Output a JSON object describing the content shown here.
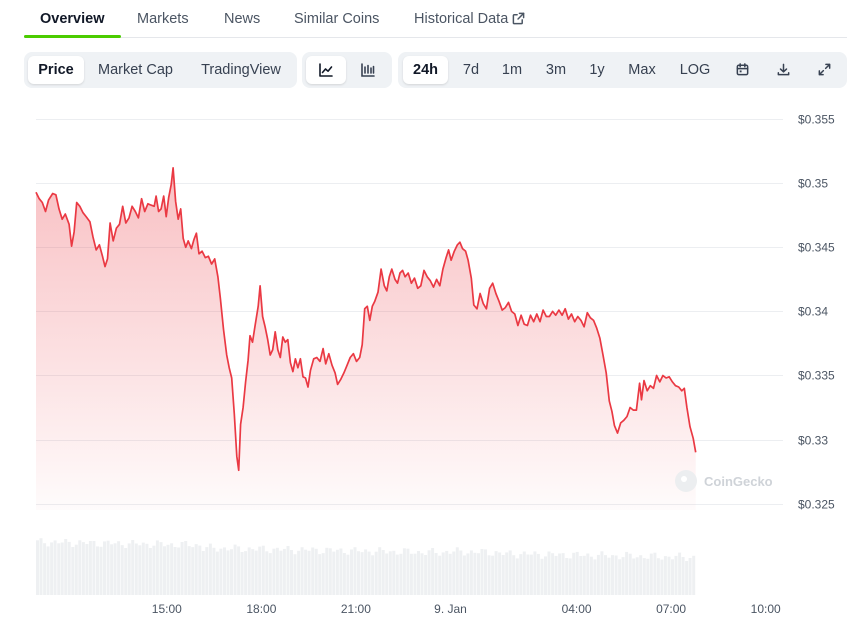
{
  "tabs": [
    {
      "label": "Overview",
      "active": true
    },
    {
      "label": "Markets"
    },
    {
      "label": "News"
    },
    {
      "label": "Similar Coins"
    },
    {
      "label": "Historical Data",
      "external": true
    }
  ],
  "chart_type_tabs": [
    {
      "label": "Price",
      "active": true
    },
    {
      "label": "Market Cap"
    },
    {
      "label": "TradingView"
    }
  ],
  "view_toggle": [
    {
      "icon": "line-chart-icon",
      "active": true
    },
    {
      "icon": "candlestick-chart-icon"
    }
  ],
  "ranges": [
    {
      "label": "24h",
      "active": true
    },
    {
      "label": "7d"
    },
    {
      "label": "1m"
    },
    {
      "label": "3m"
    },
    {
      "label": "1y"
    },
    {
      "label": "Max"
    },
    {
      "label": "LOG"
    }
  ],
  "tool_icons": [
    "calendar-icon",
    "download-icon",
    "fullscreen-icon"
  ],
  "watermark": "CoinGecko",
  "colors": {
    "line": "#ea3943",
    "fill_top": "#ea3943",
    "volume": "#eef0f2",
    "grid": "#eceef1",
    "accent": "#4bcc00"
  },
  "chart_data": {
    "type": "area",
    "title": "",
    "xlabel": "",
    "ylabel": "",
    "ylim": [
      0.3245,
      0.3565
    ],
    "y_ticks": [
      0.325,
      0.33,
      0.335,
      0.34,
      0.345,
      0.35,
      0.355
    ],
    "y_tick_labels": [
      "$0.325",
      "$0.33",
      "$0.335",
      "$0.34",
      "$0.345",
      "$0.35",
      "$0.355"
    ],
    "x_ticks": [
      {
        "t": 3.0,
        "label": "15:00"
      },
      {
        "t": 6.0,
        "label": "18:00"
      },
      {
        "t": 9.0,
        "label": "21:00"
      },
      {
        "t": 12.0,
        "label": "9. Jan"
      },
      {
        "t": 16.0,
        "label": "04:00"
      },
      {
        "t": 19.0,
        "label": "07:00"
      },
      {
        "t": 22.0,
        "label": "10:00"
      }
    ],
    "x_range": [
      -1.15,
      22.55
    ],
    "series": [
      {
        "points": [
          [
            -1.15,
            0.3493
          ],
          [
            -1.05,
            0.3488
          ],
          [
            -0.95,
            0.3485
          ],
          [
            -0.85,
            0.3478
          ],
          [
            -0.75,
            0.3487
          ],
          [
            -0.62,
            0.3492
          ],
          [
            -0.52,
            0.3491
          ],
          [
            -0.42,
            0.348
          ],
          [
            -0.32,
            0.3472
          ],
          [
            -0.22,
            0.3476
          ],
          [
            -0.1,
            0.3468
          ],
          [
            -0.02,
            0.3451
          ],
          [
            0.06,
            0.3462
          ],
          [
            0.14,
            0.3485
          ],
          [
            0.24,
            0.3482
          ],
          [
            0.34,
            0.3477
          ],
          [
            0.44,
            0.3474
          ],
          [
            0.56,
            0.347
          ],
          [
            0.66,
            0.3458
          ],
          [
            0.76,
            0.3448
          ],
          [
            0.86,
            0.3452
          ],
          [
            0.96,
            0.3443
          ],
          [
            1.04,
            0.3435
          ],
          [
            1.12,
            0.3441
          ],
          [
            1.2,
            0.3469
          ],
          [
            1.3,
            0.3455
          ],
          [
            1.4,
            0.3465
          ],
          [
            1.5,
            0.3468
          ],
          [
            1.6,
            0.3482
          ],
          [
            1.7,
            0.3469
          ],
          [
            1.8,
            0.3473
          ],
          [
            1.9,
            0.3482
          ],
          [
            2.0,
            0.3478
          ],
          [
            2.1,
            0.3473
          ],
          [
            2.2,
            0.3488
          ],
          [
            2.3,
            0.3478
          ],
          [
            2.4,
            0.3484
          ],
          [
            2.5,
            0.3483
          ],
          [
            2.6,
            0.3482
          ],
          [
            2.66,
            0.349
          ],
          [
            2.74,
            0.3478
          ],
          [
            2.82,
            0.348
          ],
          [
            2.9,
            0.349
          ],
          [
            2.98,
            0.3474
          ],
          [
            3.06,
            0.3489
          ],
          [
            3.14,
            0.3499
          ],
          [
            3.2,
            0.3512
          ],
          [
            3.28,
            0.3486
          ],
          [
            3.36,
            0.3472
          ],
          [
            3.44,
            0.348
          ],
          [
            3.52,
            0.3457
          ],
          [
            3.6,
            0.345
          ],
          [
            3.68,
            0.3455
          ],
          [
            3.78,
            0.3449
          ],
          [
            3.86,
            0.3456
          ],
          [
            3.94,
            0.3461
          ],
          [
            4.02,
            0.3445
          ],
          [
            4.12,
            0.3447
          ],
          [
            4.22,
            0.3442
          ],
          [
            4.32,
            0.3443
          ],
          [
            4.42,
            0.3437
          ],
          [
            4.52,
            0.3441
          ],
          [
            4.62,
            0.3427
          ],
          [
            4.7,
            0.341
          ],
          [
            4.8,
            0.3386
          ],
          [
            4.9,
            0.3366
          ],
          [
            4.98,
            0.3356
          ],
          [
            5.06,
            0.3348
          ],
          [
            5.14,
            0.332
          ],
          [
            5.22,
            0.3287
          ],
          [
            5.28,
            0.3276
          ],
          [
            5.34,
            0.3312
          ],
          [
            5.42,
            0.3325
          ],
          [
            5.5,
            0.3345
          ],
          [
            5.58,
            0.3362
          ],
          [
            5.64,
            0.3381
          ],
          [
            5.72,
            0.3376
          ],
          [
            5.8,
            0.3389
          ],
          [
            5.9,
            0.3404
          ],
          [
            5.96,
            0.342
          ],
          [
            6.04,
            0.3396
          ],
          [
            6.12,
            0.3388
          ],
          [
            6.2,
            0.3378
          ],
          [
            6.28,
            0.3366
          ],
          [
            6.36,
            0.337
          ],
          [
            6.44,
            0.3384
          ],
          [
            6.52,
            0.337
          ],
          [
            6.6,
            0.3364
          ],
          [
            6.68,
            0.338
          ],
          [
            6.76,
            0.3376
          ],
          [
            6.84,
            0.3378
          ],
          [
            6.92,
            0.336
          ],
          [
            7.0,
            0.3353
          ],
          [
            7.08,
            0.3363
          ],
          [
            7.16,
            0.3356
          ],
          [
            7.24,
            0.3363
          ],
          [
            7.32,
            0.3349
          ],
          [
            7.4,
            0.3348
          ],
          [
            7.48,
            0.3341
          ],
          [
            7.56,
            0.3354
          ],
          [
            7.66,
            0.3363
          ],
          [
            7.76,
            0.3364
          ],
          [
            7.86,
            0.3361
          ],
          [
            7.96,
            0.3371
          ],
          [
            8.04,
            0.3359
          ],
          [
            8.14,
            0.3367
          ],
          [
            8.24,
            0.3358
          ],
          [
            8.34,
            0.3352
          ],
          [
            8.42,
            0.3343
          ],
          [
            8.52,
            0.3347
          ],
          [
            8.62,
            0.3352
          ],
          [
            8.72,
            0.3358
          ],
          [
            8.82,
            0.3364
          ],
          [
            8.92,
            0.3367
          ],
          [
            9.02,
            0.3361
          ],
          [
            9.12,
            0.3364
          ],
          [
            9.2,
            0.3374
          ],
          [
            9.28,
            0.3402
          ],
          [
            9.36,
            0.3404
          ],
          [
            9.44,
            0.3393
          ],
          [
            9.52,
            0.3404
          ],
          [
            9.6,
            0.3408
          ],
          [
            9.7,
            0.3415
          ],
          [
            9.8,
            0.3433
          ],
          [
            9.9,
            0.342
          ],
          [
            9.98,
            0.3416
          ],
          [
            10.06,
            0.3427
          ],
          [
            10.14,
            0.3433
          ],
          [
            10.24,
            0.3425
          ],
          [
            10.32,
            0.3422
          ],
          [
            10.4,
            0.343
          ],
          [
            10.48,
            0.3432
          ],
          [
            10.56,
            0.3427
          ],
          [
            10.66,
            0.343
          ],
          [
            10.76,
            0.3422
          ],
          [
            10.86,
            0.3426
          ],
          [
            10.96,
            0.3418
          ],
          [
            11.06,
            0.342
          ],
          [
            11.16,
            0.3432
          ],
          [
            11.26,
            0.3427
          ],
          [
            11.36,
            0.3424
          ],
          [
            11.46,
            0.3419
          ],
          [
            11.56,
            0.3425
          ],
          [
            11.66,
            0.342
          ],
          [
            11.76,
            0.3433
          ],
          [
            11.86,
            0.3442
          ],
          [
            11.94,
            0.3448
          ],
          [
            12.02,
            0.344
          ],
          [
            12.12,
            0.3447
          ],
          [
            12.22,
            0.3452
          ],
          [
            12.3,
            0.3454
          ],
          [
            12.38,
            0.3449
          ],
          [
            12.48,
            0.3447
          ],
          [
            12.56,
            0.344
          ],
          [
            12.66,
            0.3426
          ],
          [
            12.74,
            0.3405
          ],
          [
            12.84,
            0.3402
          ],
          [
            12.94,
            0.3414
          ],
          [
            13.04,
            0.3406
          ],
          [
            13.14,
            0.3402
          ],
          [
            13.24,
            0.3418
          ],
          [
            13.34,
            0.3422
          ],
          [
            13.44,
            0.3414
          ],
          [
            13.54,
            0.3408
          ],
          [
            13.64,
            0.3401
          ],
          [
            13.74,
            0.3403
          ],
          [
            13.84,
            0.3407
          ],
          [
            13.94,
            0.34
          ],
          [
            14.04,
            0.3398
          ],
          [
            14.14,
            0.3389
          ],
          [
            14.24,
            0.3397
          ],
          [
            14.34,
            0.339
          ],
          [
            14.44,
            0.3389
          ],
          [
            14.54,
            0.3397
          ],
          [
            14.64,
            0.3392
          ],
          [
            14.74,
            0.3398
          ],
          [
            14.84,
            0.3392
          ],
          [
            14.94,
            0.3401
          ],
          [
            15.04,
            0.3396
          ],
          [
            15.14,
            0.3396
          ],
          [
            15.24,
            0.34
          ],
          [
            15.34,
            0.3397
          ],
          [
            15.44,
            0.3401
          ],
          [
            15.54,
            0.3397
          ],
          [
            15.64,
            0.3402
          ],
          [
            15.74,
            0.3394
          ],
          [
            15.84,
            0.3398
          ],
          [
            15.94,
            0.3392
          ],
          [
            16.04,
            0.3396
          ],
          [
            16.14,
            0.3393
          ],
          [
            16.24,
            0.3388
          ],
          [
            16.34,
            0.3399
          ],
          [
            16.44,
            0.3395
          ],
          [
            16.54,
            0.3393
          ],
          [
            16.64,
            0.3387
          ],
          [
            16.74,
            0.3379
          ],
          [
            16.84,
            0.3366
          ],
          [
            16.94,
            0.3352
          ],
          [
            17.04,
            0.333
          ],
          [
            17.12,
            0.3322
          ],
          [
            17.2,
            0.3311
          ],
          [
            17.3,
            0.3305
          ],
          [
            17.4,
            0.3313
          ],
          [
            17.5,
            0.3315
          ],
          [
            17.6,
            0.3318
          ],
          [
            17.7,
            0.3325
          ],
          [
            17.8,
            0.3323
          ],
          [
            17.9,
            0.3323
          ],
          [
            18.0,
            0.3344
          ],
          [
            18.06,
            0.3331
          ],
          [
            18.14,
            0.3346
          ],
          [
            18.24,
            0.3338
          ],
          [
            18.34,
            0.3342
          ],
          [
            18.44,
            0.334
          ],
          [
            18.54,
            0.335
          ],
          [
            18.64,
            0.3345
          ],
          [
            18.74,
            0.335
          ],
          [
            18.84,
            0.3348
          ],
          [
            18.94,
            0.3349
          ],
          [
            19.04,
            0.3345
          ],
          [
            19.14,
            0.3342
          ],
          [
            19.24,
            0.3341
          ],
          [
            19.34,
            0.3338
          ],
          [
            19.42,
            0.334
          ],
          [
            19.5,
            0.3325
          ],
          [
            19.6,
            0.331
          ],
          [
            19.7,
            0.3301
          ],
          [
            19.78,
            0.329
          ]
        ]
      }
    ]
  }
}
